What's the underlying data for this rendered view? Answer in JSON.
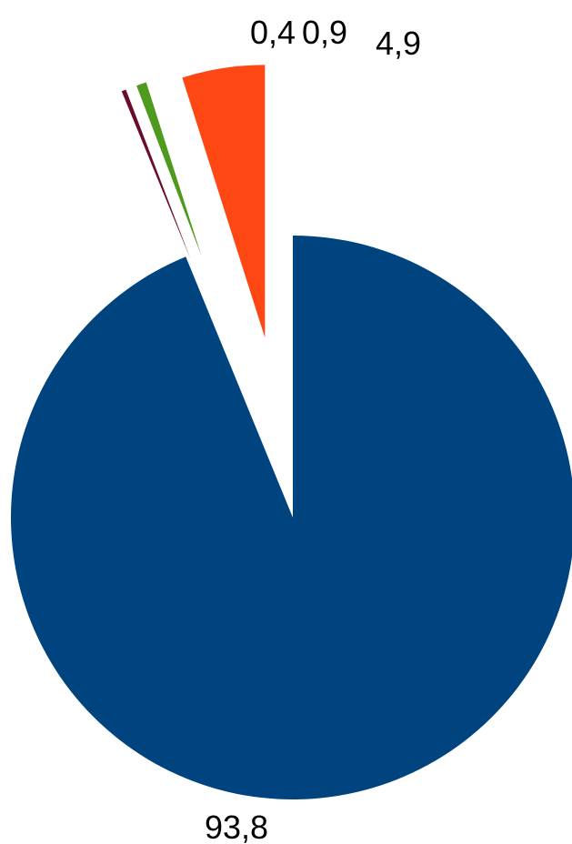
{
  "chart_data": {
    "type": "pie",
    "title": "",
    "exploded": true,
    "start_angle_deg": 0,
    "direction": "clockwise",
    "slices": [
      {
        "value": 93.8,
        "label": "93,8",
        "color": "#00447f"
      },
      {
        "value": 0.4,
        "label": "0,4",
        "color": "#6b0c28"
      },
      {
        "value": 0.9,
        "label": "0,9",
        "color": "#4d9a1c"
      },
      {
        "value": 4.9,
        "label": "4,9",
        "color": "#ff4714"
      }
    ]
  }
}
